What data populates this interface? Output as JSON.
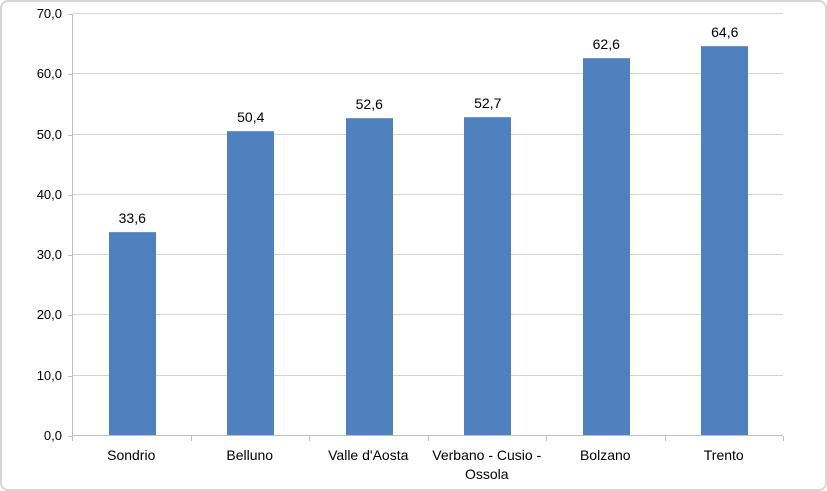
{
  "chart_data": {
    "type": "bar",
    "title": "",
    "xlabel": "",
    "ylabel": "",
    "categories": [
      "Sondrio",
      "Belluno",
      "Valle d'Aosta",
      "Verbano - Cusio - Ossola",
      "Bolzano",
      "Trento"
    ],
    "values": [
      33.6,
      50.4,
      52.6,
      52.7,
      62.6,
      64.6
    ],
    "value_labels": [
      "33,6",
      "50,4",
      "52,6",
      "52,7",
      "62,6",
      "64,6"
    ],
    "ylim": [
      0,
      70
    ],
    "ytick_interval": 10,
    "ytick_values": [
      0,
      10,
      20,
      30,
      40,
      50,
      60,
      70
    ],
    "ytick_labels": [
      "0,0",
      "10,0",
      "20,0",
      "30,0",
      "40,0",
      "50,0",
      "60,0",
      "70,0"
    ],
    "grid": true,
    "legend": "none",
    "decimal_separator": ",",
    "colors": {
      "bar_fill": "#4e81bd",
      "bar_top_highlight": "#6d96c6",
      "gridline": "#d3d3d3",
      "axis_line": "#bfbfbf",
      "frame_border": "#d7d7d7",
      "text": "#000000"
    }
  }
}
